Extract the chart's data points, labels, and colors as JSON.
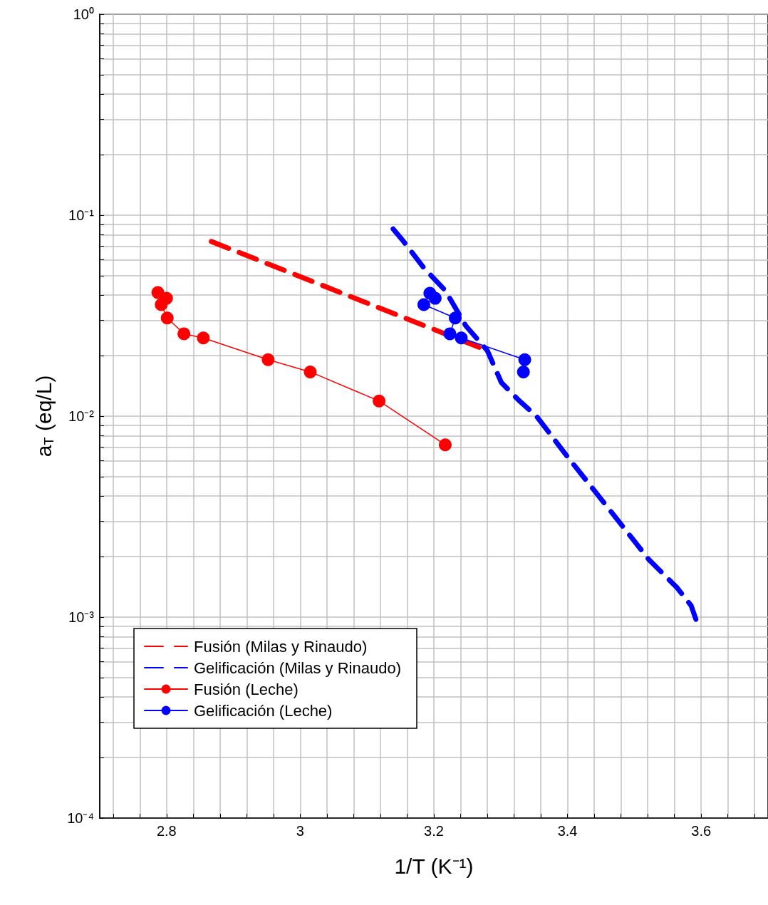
{
  "chart_data": {
    "type": "line",
    "xlabel": "1/T (K⁻¹)",
    "ylabel": "a$_{T}$ (eq/L)",
    "xlim": [
      2.7,
      3.7
    ],
    "xticks": [
      2.8,
      3.0,
      3.2,
      3.4,
      3.6
    ],
    "ylim": [
      0.0001,
      1
    ],
    "log": "y",
    "yticks": [
      {
        "value": 0.0001,
        "label": "10⁻⁴"
      },
      {
        "value": 0.001,
        "label": "10⁻³"
      },
      {
        "value": 0.01,
        "label": "10⁻²"
      },
      {
        "value": 0.1,
        "label": "10⁻¹"
      },
      {
        "value": 1,
        "label": "10⁰"
      }
    ],
    "grid": true,
    "legend": "bottom left",
    "series": [
      {
        "name": "Fusión (Milas y Rinaudo)",
        "color": "#ff0000",
        "line_style": "dashed",
        "marker": "none",
        "x": [
          2.867,
          3.28
        ],
        "values": [
          0.074,
          0.0212
        ]
      },
      {
        "name": "Gelificación (Milas y Rinaudo)",
        "color": "#0000ff",
        "line_style": "dashed",
        "marker": "none",
        "x": [
          3.139,
          3.154,
          3.185,
          3.217,
          3.248,
          3.28,
          3.301,
          3.327,
          3.354,
          3.396,
          3.438,
          3.48,
          3.522,
          3.564,
          3.585,
          3.596
        ],
        "values": [
          0.0855,
          0.0745,
          0.0547,
          0.0422,
          0.0281,
          0.0212,
          0.0147,
          0.012,
          0.00996,
          0.00653,
          0.00435,
          0.0029,
          0.00193,
          0.0014,
          0.00114,
          0.000895
        ]
      },
      {
        "name": "Fusión (Leche)",
        "color": "#ff0000",
        "line_style": "solid",
        "marker": "circle",
        "x": [
          2.787,
          2.8,
          2.792,
          2.801,
          2.826,
          2.855,
          2.952,
          3.015,
          3.118,
          3.217
        ],
        "values": [
          0.0412,
          0.0386,
          0.0359,
          0.0308,
          0.0257,
          0.0245,
          0.0191,
          0.0166,
          0.0119,
          0.0072
        ]
      },
      {
        "name": "Gelificación (Leche)",
        "color": "#0000ff",
        "line_style": "solid",
        "marker": "circle",
        "x": [
          3.194,
          3.202,
          3.185,
          3.232,
          3.224,
          3.241,
          3.336,
          3.334
        ],
        "values": [
          0.0409,
          0.0386,
          0.0359,
          0.0308,
          0.0257,
          0.0245,
          0.0191,
          0.0166
        ]
      }
    ]
  }
}
